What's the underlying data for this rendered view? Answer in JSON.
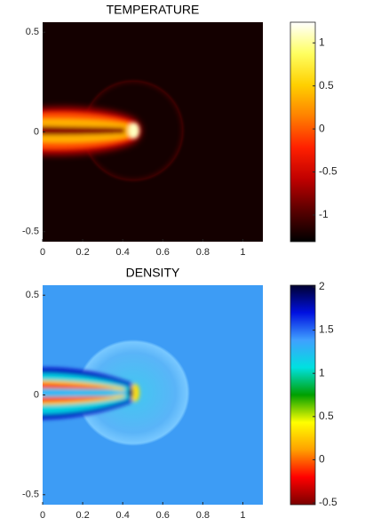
{
  "chart_data": [
    {
      "type": "heatmap",
      "title": "TEMPERATURE",
      "xlim": [
        0,
        1.1
      ],
      "xticks": [
        0,
        0.2,
        0.4,
        0.6,
        0.8,
        1
      ],
      "ylim": [
        -0.55,
        0.55
      ],
      "yticks": [
        -0.5,
        0,
        0.5
      ],
      "colorbar": {
        "clim": [
          -1.31,
          1.24
        ],
        "ticks": [
          -1,
          -0.5,
          0,
          0.5,
          1
        ],
        "colors": [
          "#000000",
          "#5a0000",
          "#c00000",
          "#ff2000",
          "#ff8000",
          "#ffd000",
          "#ffff60",
          "#ffffff"
        ]
      }
    },
    {
      "type": "heatmap",
      "title": "DENSITY",
      "xlim": [
        0,
        1.1
      ],
      "xticks": [
        0,
        0.2,
        0.4,
        0.6,
        0.8,
        1
      ],
      "ylim": [
        -0.55,
        0.55
      ],
      "yticks": [
        -0.5,
        0,
        0.5
      ],
      "colorbar": {
        "clim": [
          -0.52,
          2.02
        ],
        "ticks": [
          -0.5,
          0,
          0.5,
          1,
          1.5,
          2
        ],
        "colors": [
          "#7a0000",
          "#ff0000",
          "#ffa000",
          "#ffff00",
          "#00a000",
          "#00e0e0",
          "#40a0ff",
          "#0010e0",
          "#000030"
        ]
      }
    }
  ]
}
